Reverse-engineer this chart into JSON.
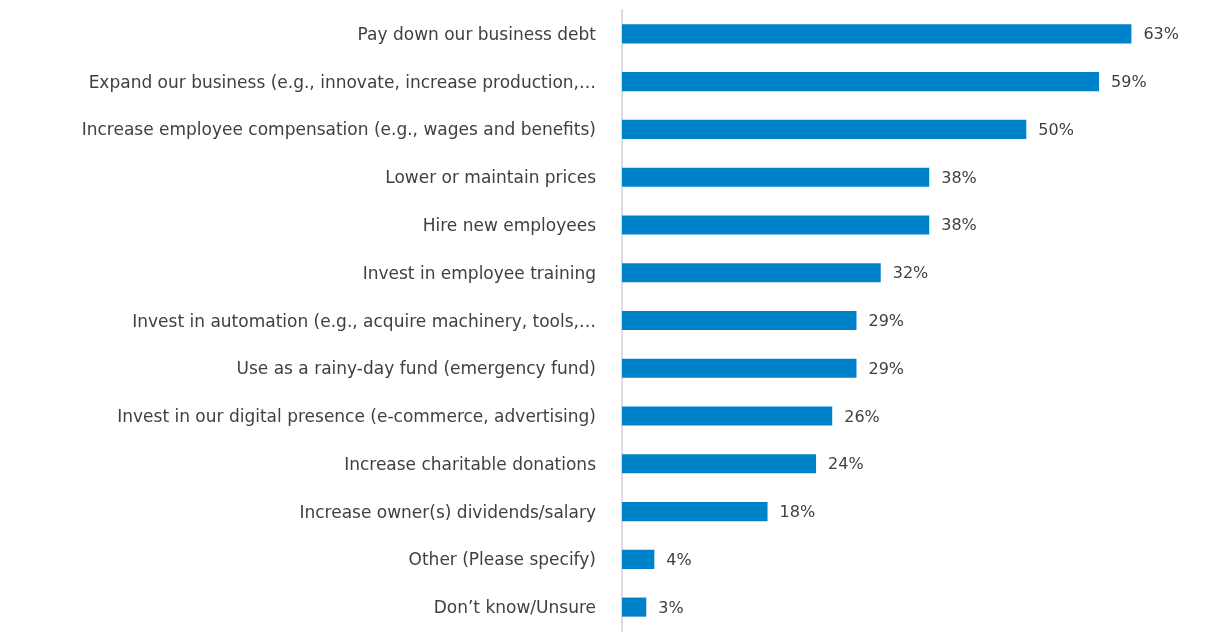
{
  "chart_data": {
    "type": "bar",
    "orientation": "horizontal",
    "categories": [
      "Pay down our business debt",
      "Expand our business (e.g., innovate, increase production,…",
      "Increase employee compensation (e.g., wages and benefits)",
      "Lower or maintain prices",
      "Hire new employees",
      "Invest in employee training",
      "Invest in automation (e.g., acquire machinery, tools,…",
      "Use as a rainy-day fund (emergency fund)",
      "Invest in our digital presence (e-commerce, advertising)",
      "Increase charitable donations",
      "Increase owner(s) dividends/salary",
      "Other (Please specify)",
      "Don’t know/Unsure"
    ],
    "values": [
      63,
      59,
      50,
      38,
      38,
      32,
      29,
      29,
      26,
      24,
      18,
      4,
      3
    ],
    "value_labels": [
      "63%",
      "59%",
      "50%",
      "38%",
      "38%",
      "32%",
      "29%",
      "29%",
      "26%",
      "24%",
      "18%",
      "4%",
      "3%"
    ],
    "color": "#0082ca",
    "grid": false
  }
}
